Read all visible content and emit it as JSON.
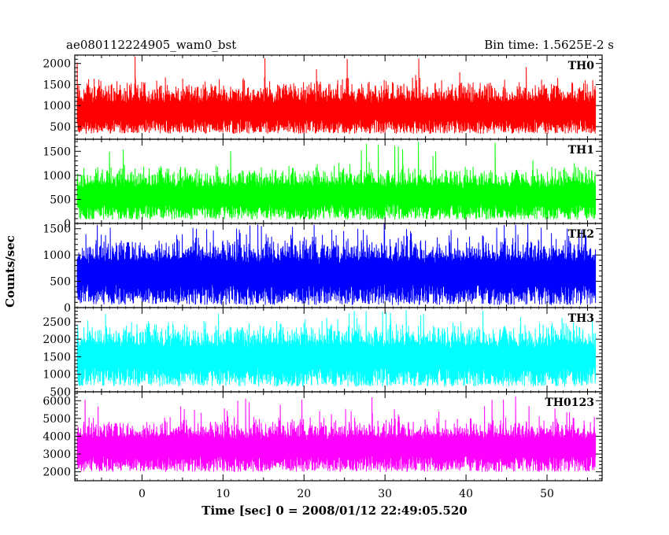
{
  "header": {
    "left_title": "ae080112224905_wam0_bst",
    "right_title": "Bin time: 1.5625E-2 s"
  },
  "chart_data": {
    "type": "line",
    "xlabel": "Time [sec] 0 = 2008/01/12 22:49:05.520",
    "ylabel": "Counts/sec",
    "xlim": [
      -8.3,
      56.8
    ],
    "x_ticks": [
      0,
      10,
      20,
      30,
      40,
      50
    ],
    "data_x_range": [
      -8.0,
      56.0
    ],
    "series": [
      {
        "name": "TH0",
        "color": "#ff0000",
        "ylim": [
          200,
          2200
        ],
        "y_ticks": [
          500,
          1000,
          1500,
          2000
        ],
        "mean": 900,
        "low": 330,
        "high": 1700,
        "max_peak": 2180
      },
      {
        "name": "TH1",
        "color": "#00ff00",
        "ylim": [
          0,
          1750
        ],
        "y_ticks": [
          0,
          500,
          1000,
          1500
        ],
        "mean": 620,
        "low": 80,
        "high": 1250,
        "max_peak": 1750
      },
      {
        "name": "TH2",
        "color": "#0000ff",
        "ylim": [
          0,
          1600
        ],
        "y_ticks": [
          0,
          500,
          1000,
          1500
        ],
        "mean": 700,
        "low": 50,
        "high": 1450,
        "max_peak": 1600
      },
      {
        "name": "TH3",
        "color": "#00ffff",
        "ylim": [
          500,
          2900
        ],
        "y_ticks": [
          500,
          1000,
          1500,
          2000,
          2500
        ],
        "mean": 1550,
        "low": 650,
        "high": 2600,
        "max_peak": 2850
      },
      {
        "name": "TH0123",
        "color": "#ff00ff",
        "ylim": [
          1500,
          6500
        ],
        "y_ticks": [
          2000,
          3000,
          4000,
          5000,
          6000
        ],
        "mean": 3500,
        "low": 2000,
        "high": 5200,
        "max_peak": 6250
      }
    ]
  }
}
